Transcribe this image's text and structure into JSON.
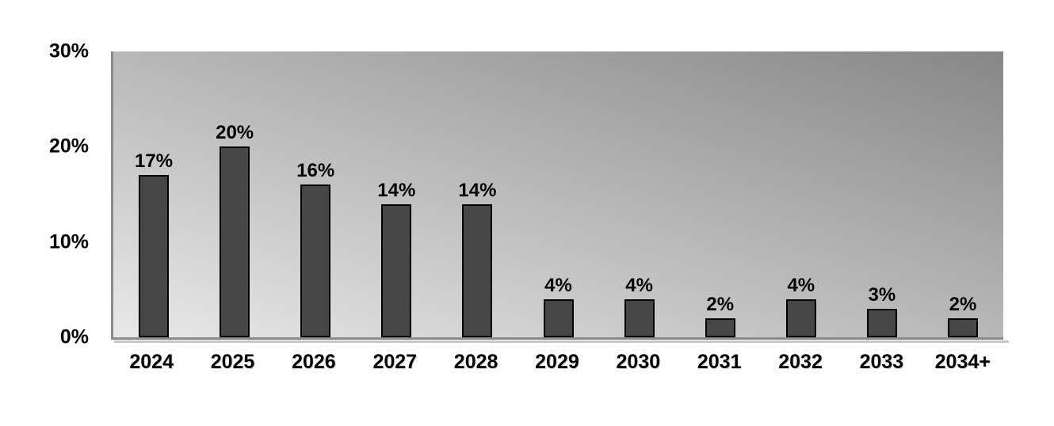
{
  "chart_data": {
    "type": "bar",
    "title": "",
    "xlabel": "",
    "ylabel": "",
    "categories": [
      "2024",
      "2025",
      "2026",
      "2027",
      "2028",
      "2029",
      "2030",
      "2031",
      "2032",
      "2033",
      "2034+"
    ],
    "values": [
      17,
      20,
      16,
      14,
      14,
      4,
      4,
      2,
      4,
      3,
      2
    ],
    "value_labels": [
      "17%",
      "20%",
      "16%",
      "14%",
      "14%",
      "4%",
      "4%",
      "2%",
      "4%",
      "3%",
      "2%"
    ],
    "ylim": [
      0,
      30
    ],
    "yticks": [
      {
        "value": 30,
        "label": "30%"
      },
      {
        "value": 20,
        "label": "20%"
      },
      {
        "value": 10,
        "label": "10%"
      },
      {
        "value": 0,
        "label": "0%"
      }
    ],
    "grid": false,
    "legend": "none",
    "colors": {
      "bar_fill": "#474747",
      "bar_border": "#000000",
      "plot_gradient_bottom_left": "#e9e9e9",
      "plot_gradient_top_right": "#878787",
      "axis_line": "#8a8a8a",
      "label_text": "#000000",
      "page_background": "#ffffff"
    }
  }
}
